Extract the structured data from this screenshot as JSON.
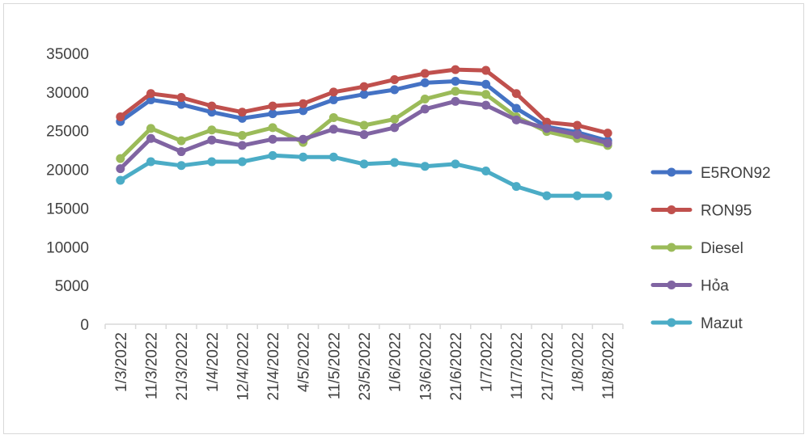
{
  "chart_data": {
    "type": "line",
    "title": "",
    "xlabel": "",
    "ylabel": "",
    "ylim": [
      0,
      35000
    ],
    "yticks": [
      0,
      5000,
      10000,
      15000,
      20000,
      25000,
      30000,
      35000
    ],
    "grid": true,
    "legend_position": "right",
    "categories": [
      "1/3/2022",
      "11/3/2022",
      "21/3/2022",
      "1/4/2022",
      "12/4/2022",
      "21/4/2022",
      "4/5/2022",
      "11/5/2022",
      "23/5/2022",
      "1/6/2022",
      "13/6/2022",
      "21/6/2022",
      "1/7/2022",
      "11/7/2022",
      "21/7/2022",
      "1/8/2022",
      "11/8/2022"
    ],
    "series": [
      {
        "name": "E5RON92",
        "color": "#4472C4",
        "values": [
          26200,
          29000,
          28400,
          27400,
          26600,
          27200,
          27600,
          29000,
          29700,
          30300,
          31200,
          31400,
          31000,
          27900,
          25500,
          24800,
          23700
        ]
      },
      {
        "name": "RON95",
        "color": "#C0504D",
        "values": [
          26800,
          29800,
          29300,
          28200,
          27400,
          28200,
          28500,
          30000,
          30700,
          31600,
          32400,
          32900,
          32800,
          29800,
          26100,
          25700,
          24700
        ]
      },
      {
        "name": "Diesel",
        "color": "#9BBB59",
        "values": [
          21400,
          25300,
          23700,
          25100,
          24400,
          25400,
          23500,
          26700,
          25700,
          26500,
          29100,
          30100,
          29700,
          26800,
          24900,
          24000,
          23100
        ]
      },
      {
        "name": "Hỏa",
        "color": "#8064A2",
        "values": [
          20100,
          24000,
          22300,
          23800,
          23100,
          23900,
          23900,
          25200,
          24500,
          25400,
          27800,
          28800,
          28300,
          26400,
          25300,
          24500,
          23400
        ]
      },
      {
        "name": "Mazut",
        "color": "#4BACC6",
        "values": [
          18600,
          21000,
          20500,
          21000,
          21000,
          21800,
          21600,
          21600,
          20700,
          20900,
          20400,
          20700,
          19800,
          17800,
          16600,
          16600,
          16600
        ]
      }
    ]
  }
}
